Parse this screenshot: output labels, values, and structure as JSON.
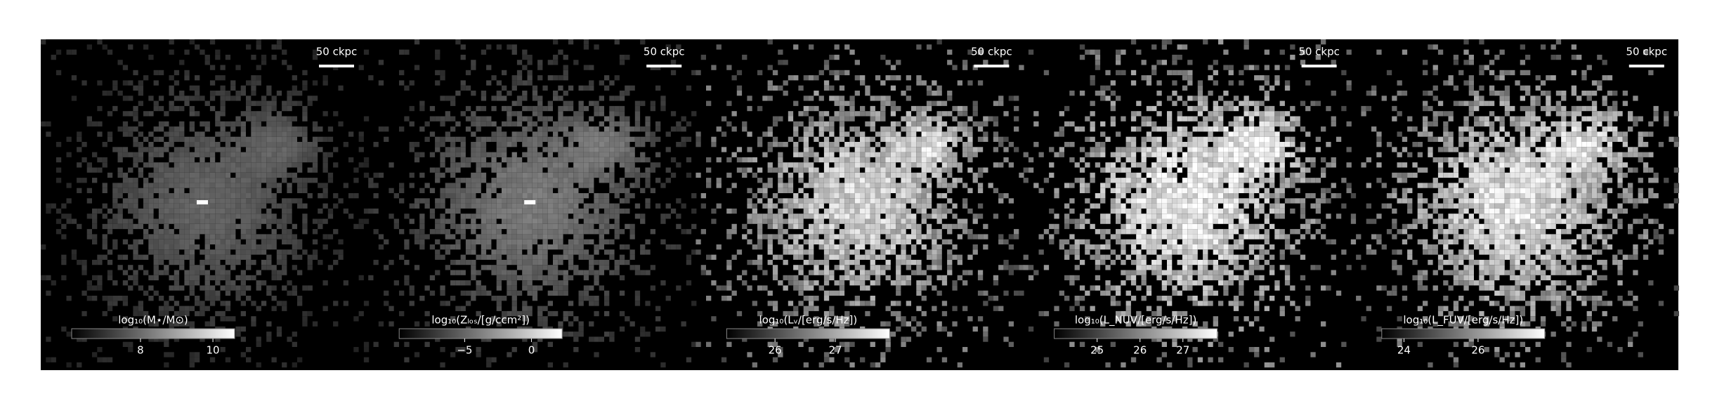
{
  "panels": [
    {
      "scale_label": "50 ckpc",
      "colorbar": {
        "label": "log₁₀(M⋆/M⊙)",
        "lim": [
          6.1,
          10.6
        ],
        "ticks": [
          8,
          10
        ]
      }
    },
    {
      "scale_label": "50 ckpc",
      "colorbar": {
        "label": "log₁₀(Zₗₒₛ/[g/ccm²])",
        "lim": [
          -9.9,
          2.3
        ],
        "ticks": [
          {
            "value": -5,
            "label": "−5"
          },
          0
        ]
      }
    },
    {
      "scale_label": "50 ckpc",
      "colorbar": {
        "label": "log₁₀(Lᵥ/[erg/s/Hz])",
        "lim": [
          25.2,
          27.9
        ],
        "ticks": [
          26,
          27
        ]
      }
    },
    {
      "scale_label": "50 ckpc",
      "colorbar": {
        "label": "log₁₀(L_NUV/[erg/s/Hz])",
        "lim": [
          24.0,
          27.8
        ],
        "ticks": [
          25,
          26,
          27
        ]
      }
    },
    {
      "scale_label": "50 ckpc",
      "colorbar": {
        "label": "log₁₀(L_FUV/[erg/s/Hz])",
        "lim": [
          23.4,
          27.8
        ],
        "ticks": [
          24,
          26
        ]
      }
    }
  ]
}
